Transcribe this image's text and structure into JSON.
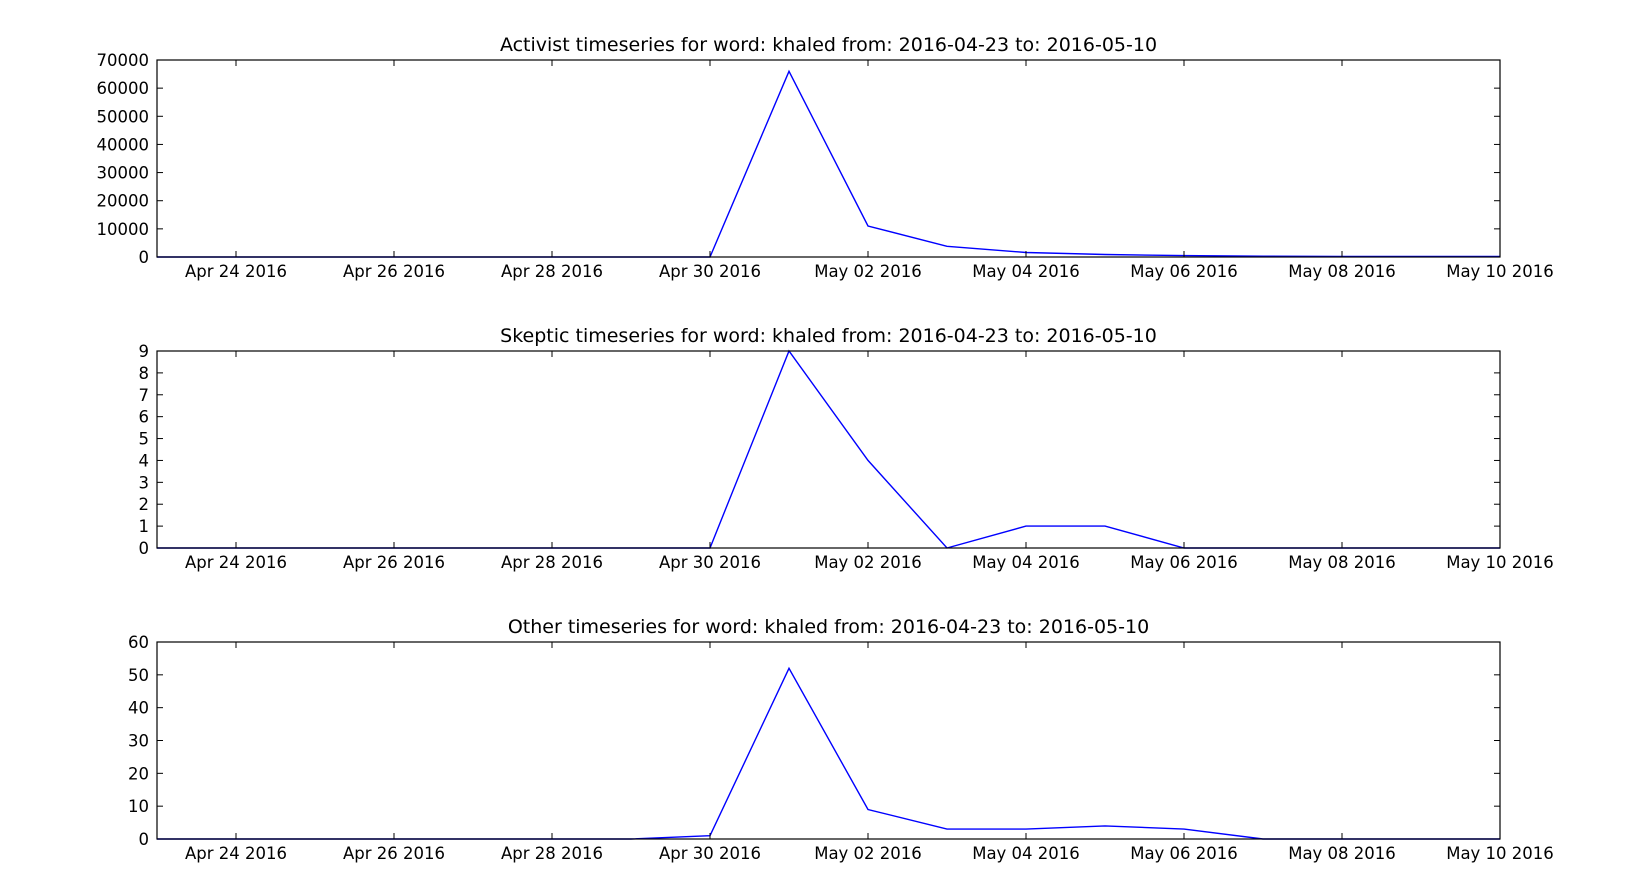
{
  "figure": {
    "background": "#ffffff"
  },
  "chart_data": [
    {
      "type": "line",
      "title": "Activist timeseries for word: khaled from: 2016-04-23 to: 2016-05-10",
      "xlabel": "",
      "ylabel": "",
      "xlim": [
        "2016-04-23",
        "2016-05-10"
      ],
      "ylim": [
        0,
        70000
      ],
      "x_ticks": [
        "2016-04-24",
        "2016-04-26",
        "2016-04-28",
        "2016-04-30",
        "2016-05-02",
        "2016-05-04",
        "2016-05-06",
        "2016-05-08",
        "2016-05-10"
      ],
      "x_tick_labels": [
        "Apr 24 2016",
        "Apr 26 2016",
        "Apr 28 2016",
        "Apr 30 2016",
        "May 02 2016",
        "May 04 2016",
        "May 06 2016",
        "May 08 2016",
        "May 10 2016"
      ],
      "y_ticks": [
        0,
        10000,
        20000,
        30000,
        40000,
        50000,
        60000,
        70000
      ],
      "y_tick_labels": [
        "0",
        "10000",
        "20000",
        "30000",
        "40000",
        "50000",
        "60000",
        "70000"
      ],
      "grid": false,
      "series": [
        {
          "color": "#0000ff",
          "x": [
            "2016-04-23",
            "2016-04-24",
            "2016-04-25",
            "2016-04-26",
            "2016-04-27",
            "2016-04-28",
            "2016-04-29",
            "2016-04-30",
            "2016-05-01",
            "2016-05-02",
            "2016-05-03",
            "2016-05-04",
            "2016-05-05",
            "2016-05-06",
            "2016-05-07",
            "2016-05-08",
            "2016-05-09",
            "2016-05-10"
          ],
          "values": [
            0,
            0,
            0,
            0,
            0,
            0,
            0,
            0,
            66000,
            11000,
            3800,
            1600,
            900,
            500,
            300,
            200,
            200,
            200
          ]
        }
      ]
    },
    {
      "type": "line",
      "title": "Skeptic timeseries for word: khaled from: 2016-04-23 to: 2016-05-10",
      "xlabel": "",
      "ylabel": "",
      "xlim": [
        "2016-04-23",
        "2016-05-10"
      ],
      "ylim": [
        0,
        9
      ],
      "x_ticks": [
        "2016-04-24",
        "2016-04-26",
        "2016-04-28",
        "2016-04-30",
        "2016-05-02",
        "2016-05-04",
        "2016-05-06",
        "2016-05-08",
        "2016-05-10"
      ],
      "x_tick_labels": [
        "Apr 24 2016",
        "Apr 26 2016",
        "Apr 28 2016",
        "Apr 30 2016",
        "May 02 2016",
        "May 04 2016",
        "May 06 2016",
        "May 08 2016",
        "May 10 2016"
      ],
      "y_ticks": [
        0,
        1,
        2,
        3,
        4,
        5,
        6,
        7,
        8,
        9
      ],
      "y_tick_labels": [
        "0",
        "1",
        "2",
        "3",
        "4",
        "5",
        "6",
        "7",
        "8",
        "9"
      ],
      "grid": false,
      "series": [
        {
          "color": "#0000ff",
          "x": [
            "2016-04-23",
            "2016-04-24",
            "2016-04-25",
            "2016-04-26",
            "2016-04-27",
            "2016-04-28",
            "2016-04-29",
            "2016-04-30",
            "2016-05-01",
            "2016-05-02",
            "2016-05-03",
            "2016-05-04",
            "2016-05-05",
            "2016-05-06",
            "2016-05-07",
            "2016-05-08",
            "2016-05-09",
            "2016-05-10"
          ],
          "values": [
            0,
            0,
            0,
            0,
            0,
            0,
            0,
            0,
            9,
            4,
            0,
            1,
            1,
            0,
            0,
            0,
            0,
            0
          ]
        }
      ]
    },
    {
      "type": "line",
      "title": "Other timeseries for word: khaled from: 2016-04-23 to: 2016-05-10",
      "xlabel": "",
      "ylabel": "",
      "xlim": [
        "2016-04-23",
        "2016-05-10"
      ],
      "ylim": [
        0,
        60
      ],
      "x_ticks": [
        "2016-04-24",
        "2016-04-26",
        "2016-04-28",
        "2016-04-30",
        "2016-05-02",
        "2016-05-04",
        "2016-05-06",
        "2016-05-08",
        "2016-05-10"
      ],
      "x_tick_labels": [
        "Apr 24 2016",
        "Apr 26 2016",
        "Apr 28 2016",
        "Apr 30 2016",
        "May 02 2016",
        "May 04 2016",
        "May 06 2016",
        "May 08 2016",
        "May 10 2016"
      ],
      "y_ticks": [
        0,
        10,
        20,
        30,
        40,
        50,
        60
      ],
      "y_tick_labels": [
        "0",
        "10",
        "20",
        "30",
        "40",
        "50",
        "60"
      ],
      "grid": false,
      "series": [
        {
          "color": "#0000ff",
          "x": [
            "2016-04-23",
            "2016-04-24",
            "2016-04-25",
            "2016-04-26",
            "2016-04-27",
            "2016-04-28",
            "2016-04-29",
            "2016-04-30",
            "2016-05-01",
            "2016-05-02",
            "2016-05-03",
            "2016-05-04",
            "2016-05-05",
            "2016-05-06",
            "2016-05-07",
            "2016-05-08",
            "2016-05-09",
            "2016-05-10"
          ],
          "values": [
            0,
            0,
            0,
            0,
            0,
            0,
            0,
            1,
            52,
            9,
            3,
            3,
            4,
            3,
            0,
            0,
            0,
            0
          ]
        }
      ]
    }
  ]
}
